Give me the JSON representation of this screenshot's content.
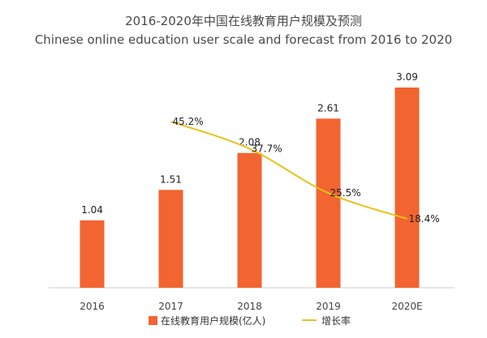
{
  "title_cn": "2016-2020年中国在线教育用户规模及预测",
  "title_en": "Chinese online education user scale and forecast from 2016 to 2020",
  "colors": {
    "bar": "#f26430",
    "line": "#e8c21b",
    "axis": "#cccccc"
  },
  "chart_data": {
    "type": "bar",
    "categories": [
      "2016",
      "2017",
      "2018",
      "2019",
      "2020E"
    ],
    "series": [
      {
        "name": "在线教育用户规模(亿人)",
        "type": "bar",
        "values": [
          1.04,
          1.51,
          2.08,
          2.61,
          3.09
        ],
        "labels": [
          "1.04",
          "1.51",
          "2.08",
          "2.61",
          "3.09"
        ]
      },
      {
        "name": "增长率",
        "type": "line",
        "unit": "%",
        "values": [
          null,
          45.2,
          37.7,
          25.5,
          18.4
        ],
        "labels": [
          "",
          "45.2%",
          "37.7%",
          "25.5%",
          "18.4%"
        ]
      }
    ],
    "legend_position": "bottom",
    "grid": false
  }
}
